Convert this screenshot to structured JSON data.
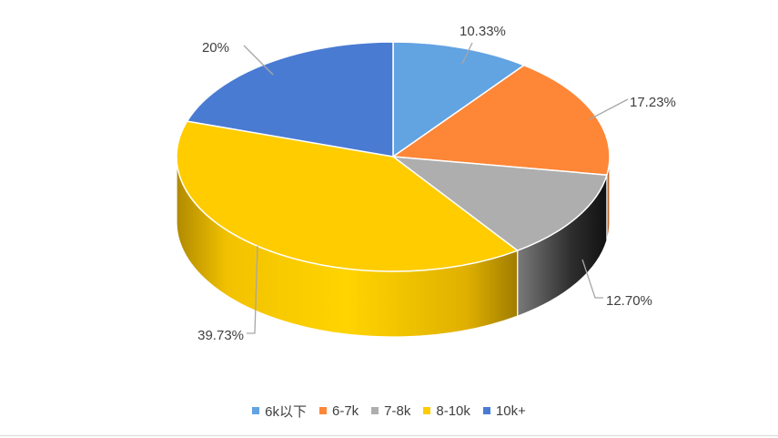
{
  "chart_data": {
    "type": "pie",
    "title": "",
    "categories": [
      "6k以下",
      "6-7k",
      "7-8k",
      "8-10k",
      "10k+"
    ],
    "values": [
      10.33,
      17.23,
      12.7,
      39.73,
      20
    ],
    "data_labels": [
      "10.33%",
      "17.23%",
      "12.70%",
      "39.73%",
      "20%"
    ],
    "colors": [
      "#62A3E2",
      "#FE8637",
      "#AEAEAE",
      "#FFCC00",
      "#4A7BD3"
    ],
    "legend_position": "bottom",
    "style": "3d"
  }
}
